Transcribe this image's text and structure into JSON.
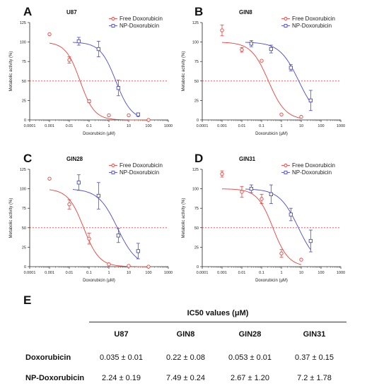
{
  "chart_data": [
    {
      "type": "scatter",
      "panel": "A",
      "title": "U87",
      "xlabel": "Doxorubicin (µM)",
      "ylabel": "Metabolic activity (%)",
      "x_scale": "log",
      "xlim": [
        0.0001,
        1000
      ],
      "ylim": [
        0,
        125
      ],
      "x_ticks": [
        "0.0001",
        "0.001",
        "0.01",
        "0.1",
        "1",
        "10",
        "100",
        "1000"
      ],
      "y_ticks": [
        "0",
        "25",
        "50",
        "75",
        "100",
        "125"
      ],
      "reference_line_y": 50,
      "legend_position": "top-right",
      "series": [
        {
          "name": "Free Doxorubicin",
          "color": "#e8413c",
          "x": [
            0.001,
            0.01,
            0.1,
            1,
            10,
            30,
            100
          ],
          "y": [
            110,
            77,
            24,
            6,
            6,
            6,
            0
          ],
          "err": [
            0,
            4,
            2,
            0,
            0,
            0,
            0
          ],
          "ic50": 0.035,
          "hill": 1.2
        },
        {
          "name": "NP-Doxorubicin",
          "color": "#4a4ad8",
          "x": [
            0.03,
            0.3,
            3,
            30
          ],
          "y": [
            101,
            91,
            41,
            7
          ],
          "err": [
            5,
            10,
            10,
            2
          ],
          "ic50": 2.24,
          "hill": 1.1
        }
      ]
    },
    {
      "type": "scatter",
      "panel": "B",
      "title": "GIN8",
      "xlabel": "Doxorubicin (µM)",
      "ylabel": "Metabolic activity (%)",
      "x_scale": "log",
      "xlim": [
        0.0001,
        1000
      ],
      "ylim": [
        0,
        125
      ],
      "x_ticks": [
        "0.0001",
        "0.001",
        "0.01",
        "0.1",
        "1",
        "10",
        "100",
        "1000"
      ],
      "y_ticks": [
        "0",
        "25",
        "50",
        "75",
        "100",
        "125"
      ],
      "reference_line_y": 50,
      "legend_position": "top-right",
      "series": [
        {
          "name": "Free Doxorubicin",
          "color": "#e8413c",
          "x": [
            0.001,
            0.01,
            0.1,
            1,
            10
          ],
          "y": [
            115,
            90,
            76,
            7,
            4
          ],
          "err": [
            7,
            3,
            0,
            0,
            0
          ],
          "ic50": 0.22,
          "hill": 1.0
        },
        {
          "name": "NP-Doxorubicin",
          "color": "#4a4ad8",
          "x": [
            0.03,
            0.3,
            3,
            30
          ],
          "y": [
            98,
            91,
            67,
            25
          ],
          "err": [
            4,
            5,
            4,
            13
          ],
          "ic50": 7.49,
          "hill": 0.9
        }
      ]
    },
    {
      "type": "scatter",
      "panel": "C",
      "title": "GIN28",
      "xlabel": "Doxorubicin (µM)",
      "ylabel": "Metabolic activity (%)",
      "x_scale": "log",
      "xlim": [
        0.0001,
        1000
      ],
      "ylim": [
        0,
        125
      ],
      "x_ticks": [
        "0.0001",
        "0.001",
        "0.01",
        "0.1",
        "1",
        "10",
        "100",
        "1000"
      ],
      "y_ticks": [
        "0",
        "25",
        "50",
        "75",
        "100",
        "125"
      ],
      "reference_line_y": 50,
      "legend_position": "top-right",
      "series": [
        {
          "name": "Free Doxorubicin",
          "color": "#e8413c",
          "x": [
            0.001,
            0.01,
            0.1,
            1,
            10,
            100
          ],
          "y": [
            113,
            80,
            36,
            3,
            1,
            0
          ],
          "err": [
            0,
            6,
            7,
            0,
            0,
            0
          ],
          "ic50": 0.053,
          "hill": 1.1
        },
        {
          "name": "NP-Doxorubicin",
          "color": "#4a4ad8",
          "x": [
            0.03,
            0.3,
            3,
            30
          ],
          "y": [
            108,
            91,
            40,
            20
          ],
          "err": [
            10,
            17,
            9,
            10
          ],
          "ic50": 2.67,
          "hill": 0.9
        }
      ]
    },
    {
      "type": "scatter",
      "panel": "D",
      "title": "GIN31",
      "xlabel": "Doxorubicin (µM)",
      "ylabel": "Metabolic activity (%)",
      "x_scale": "log",
      "xlim": [
        0.0001,
        1000
      ],
      "ylim": [
        0,
        125
      ],
      "x_ticks": [
        "0.0001",
        "0.001",
        "0.01",
        "0.1",
        "1",
        "10",
        "100",
        "1000"
      ],
      "y_ticks": [
        "0",
        "25",
        "50",
        "75",
        "100",
        "125"
      ],
      "reference_line_y": 50,
      "legend_position": "top-right",
      "series": [
        {
          "name": "Free Doxorubicin",
          "color": "#e8413c",
          "x": [
            0.001,
            0.01,
            0.1,
            1,
            10
          ],
          "y": [
            119,
            96,
            87,
            17,
            9
          ],
          "err": [
            4,
            7,
            6,
            5,
            0
          ],
          "ic50": 0.37,
          "hill": 1.1
        },
        {
          "name": "NP-Doxorubicin",
          "color": "#4a4ad8",
          "x": [
            0.03,
            0.3,
            3,
            30
          ],
          "y": [
            100,
            93,
            67,
            33
          ],
          "err": [
            5,
            12,
            8,
            14
          ],
          "ic50": 7.2,
          "hill": 0.9
        }
      ]
    }
  ],
  "table": {
    "letter": "E",
    "title": "IC50 values (μM)",
    "columns": [
      "U87",
      "GIN8",
      "GIN28",
      "GIN31"
    ],
    "rows": [
      {
        "label": "Doxorubicin",
        "values": [
          "0.035 ± 0.01",
          "0.22 ± 0.08",
          "0.053 ± 0.01",
          "0.37 ± 0.15"
        ]
      },
      {
        "label": "NP-Doxorubicin",
        "values": [
          "2.24 ± 0.19",
          "7.49 ± 0.24",
          "2.67 ± 1.20",
          "7.2 ± 1.78"
        ]
      }
    ]
  }
}
